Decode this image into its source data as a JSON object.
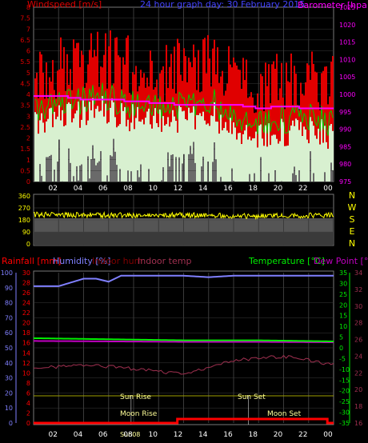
{
  "colors": {
    "wind": "#e00000",
    "gust_fill": "#ffffff",
    "wind_avg": "#00d000",
    "barometer": "#ff00ff",
    "direction": "#ffff00",
    "humidity": "#8080ff",
    "indoor_hum": "#800000",
    "indoor_temp": "#a03050",
    "temperature": "#00ee00",
    "dew_point": "#c000c0",
    "rain": "#ff0000",
    "sun": "#a0a000",
    "text_label": "#ffff99",
    "grid": "#3a3a3a"
  },
  "top": {
    "left_title": "Windspeed [m/s]",
    "center_title": "24 hour graph day:  30 February 2015",
    "right_title": "Barometer [hpa]",
    "wind_ticks": [
      "8",
      "7.5",
      "7",
      "6.5",
      "6",
      "5.5",
      "5",
      "4.5",
      "4",
      "3.5",
      "3",
      "2.5",
      "2",
      "1.5",
      "1",
      "0.5",
      "0"
    ],
    "baro_ticks": [
      "1025",
      "1020",
      "1015",
      "1010",
      "1005",
      "1000",
      "995",
      "990",
      "985",
      "980",
      "975"
    ],
    "hour_ticks": [
      "02",
      "04",
      "06",
      "08",
      "10",
      "12",
      "14",
      "16",
      "18",
      "20",
      "22",
      "00"
    ]
  },
  "middle": {
    "dir_ticks": [
      "360",
      "270",
      "180",
      "90",
      "0"
    ],
    "compass": [
      "N",
      "W",
      "S",
      "E",
      "N"
    ]
  },
  "bottom": {
    "legend": {
      "rainfall": "Rainfall [mm]",
      "humidity": "Humidity [%]",
      "indoor_hum": "Indoor hum",
      "indoor_temp": "Indoor temp",
      "temperature": "Temperature [°C]",
      "dew_point": "Dew Point [°C]"
    },
    "hum_ticks": [
      "100",
      "90",
      "80",
      "70",
      "60",
      "50",
      "40",
      "30",
      "20",
      "10",
      "0"
    ],
    "rain_ticks": [
      "30",
      "28",
      "26",
      "24",
      "22",
      "20",
      "18",
      "16",
      "14",
      "12",
      "10",
      "8",
      "6",
      "4",
      "2",
      "0"
    ],
    "temp_ticks": [
      "35",
      "30",
      "25",
      "20",
      "15",
      "10",
      "5",
      "0",
      "-5",
      "-10",
      "-15",
      "-20",
      "-25",
      "-30",
      "-35"
    ],
    "indoor_ticks": [
      "34",
      "32",
      "30",
      "28",
      "26",
      "24",
      "22",
      "20",
      "18",
      "16"
    ],
    "hour_ticks": [
      "02",
      "04",
      "06",
      "08",
      "10",
      "12",
      "14",
      "16",
      "18",
      "20",
      "22",
      "00"
    ],
    "annotations": {
      "sun_rise": "Sun Rise",
      "sun_set": "Sun Set",
      "moon_rise": "Moon Rise",
      "moon_set": "Moon Set",
      "sun_marker": "Sun08"
    }
  },
  "chart_data": [
    {
      "type": "line",
      "title": "24 hour graph day:  30 February 2015",
      "x_range": [
        "00",
        "00"
      ],
      "series": [
        {
          "name": "Windspeed [m/s]",
          "axis": "left",
          "ylim": [
            0,
            8
          ],
          "x": [
            0,
            2,
            4,
            6,
            8,
            10,
            12,
            14,
            16,
            18,
            20,
            22,
            24
          ],
          "values": [
            4.5,
            4.8,
            5.0,
            5.2,
            4.8,
            4.6,
            4.8,
            5.0,
            4.5,
            3.9,
            4.2,
            4.3,
            4.0
          ]
        },
        {
          "name": "Barometer [hpa]",
          "axis": "right",
          "ylim": [
            975,
            1025
          ],
          "x": [
            0,
            2,
            4,
            6,
            8,
            10,
            12,
            14,
            16,
            18,
            20,
            22,
            24
          ],
          "values": [
            999.5,
            999.5,
            998.5,
            998.5,
            998.0,
            997.5,
            997.0,
            997.0,
            997.0,
            996.0,
            996.5,
            996.0,
            996.0
          ]
        }
      ]
    },
    {
      "type": "line",
      "series": [
        {
          "name": "Wind direction",
          "ylim": [
            0,
            360
          ],
          "x": [
            0,
            6,
            12,
            18,
            24
          ],
          "values": [
            220,
            215,
            215,
            210,
            215
          ]
        }
      ]
    },
    {
      "type": "line",
      "legend": [
        "Rainfall [mm]",
        "Humidity [%]",
        "Indoor hum",
        "Indoor temp",
        "Temperature [°C]",
        "Dew Point [°C]"
      ],
      "series": [
        {
          "name": "Humidity [%]",
          "axis": "left",
          "ylim": [
            0,
            100
          ],
          "x": [
            0,
            2,
            4,
            5,
            6,
            7,
            12,
            14,
            16,
            24
          ],
          "values": [
            91,
            91,
            96,
            96,
            94,
            98,
            98,
            97,
            98,
            98
          ]
        },
        {
          "name": "Temperature [°C]",
          "axis": "right",
          "ylim": [
            -35,
            35
          ],
          "x": [
            0,
            6,
            12,
            18,
            24
          ],
          "values": [
            4.5,
            4.0,
            3.5,
            3.5,
            3.0
          ]
        },
        {
          "name": "Dew Point [°C]",
          "axis": "right",
          "ylim": [
            -35,
            35
          ],
          "x": [
            0,
            6,
            12,
            18,
            24
          ],
          "values": [
            3.2,
            3.0,
            2.8,
            2.8,
            2.6
          ]
        },
        {
          "name": "Indoor temp",
          "axis": "right-inner",
          "ylim": [
            16,
            34
          ],
          "x": [
            0,
            4,
            8,
            12,
            16,
            20,
            24
          ],
          "values": [
            22.5,
            23,
            22.5,
            21.8,
            23.5,
            24,
            23
          ]
        },
        {
          "name": "Rainfall [mm]",
          "axis": "left-inner",
          "ylim": [
            0,
            30
          ],
          "x": [
            0,
            11.5,
            11.6,
            23.5,
            24
          ],
          "values": [
            0,
            0,
            0.8,
            0.8,
            0
          ]
        }
      ]
    }
  ]
}
